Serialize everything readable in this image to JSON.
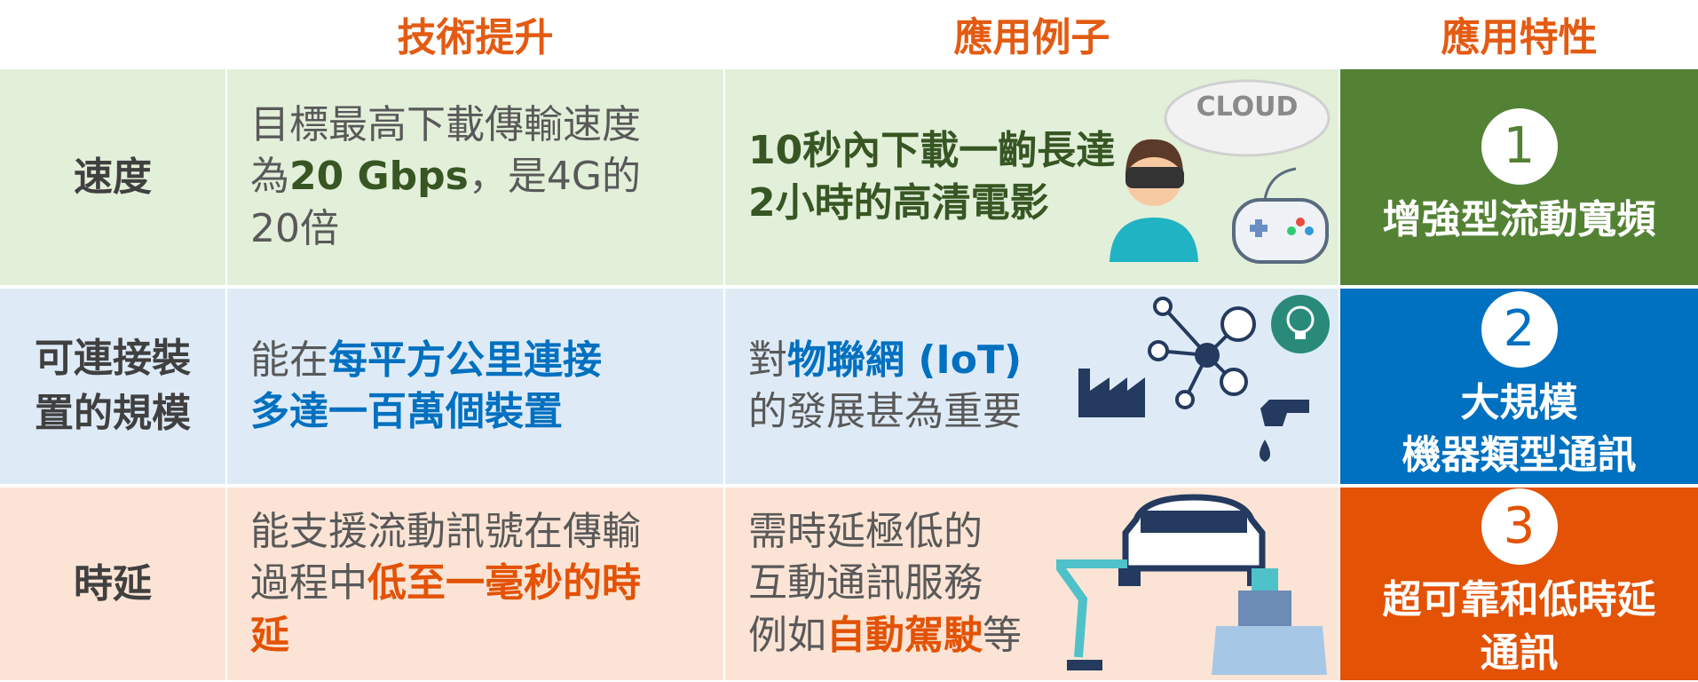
{
  "header": {
    "columns": [
      "技術提升",
      "應用例子",
      "應用特性"
    ]
  },
  "rows": [
    {
      "label": [
        "速度"
      ],
      "technology": [
        [
          {
            "text": "目標最高下載傳輸速度"
          }
        ],
        [
          {
            "text": "為"
          },
          {
            "text": "20 Gbps",
            "emphasis": true
          },
          {
            "text": "，是4G的"
          }
        ],
        [
          {
            "text": "20倍"
          }
        ]
      ],
      "example": [
        [
          {
            "text": "10秒內下載一齣長達",
            "emphasis": true
          }
        ],
        [
          {
            "text": "2小時的高清電影",
            "emphasis": true
          }
        ]
      ],
      "icon_text": "CLOUD",
      "feature": {
        "number": 1,
        "lines": [
          "增強型流動寬頻"
        ]
      }
    },
    {
      "label": [
        "可連接裝",
        "置的規模"
      ],
      "technology": [
        [
          {
            "text": "能在"
          },
          {
            "text": "每平方公里連接",
            "emphasis": true
          }
        ],
        [
          {
            "text": "多達一百萬個裝置",
            "emphasis": true
          }
        ]
      ],
      "example": [
        [
          {
            "text": "對"
          },
          {
            "text": "物聯網 (IoT)",
            "emphasis": true
          }
        ],
        [
          {
            "text": "的發展甚為重要"
          }
        ]
      ],
      "feature": {
        "number": 2,
        "lines": [
          "大規模",
          "機器類型通訊"
        ]
      }
    },
    {
      "label": [
        "時延"
      ],
      "technology": [
        [
          {
            "text": "能支援流動訊號在傳輸"
          }
        ],
        [
          {
            "text": "過程中"
          },
          {
            "text": "低至一毫秒的時",
            "emphasis": true
          }
        ],
        [
          {
            "text": "延",
            "emphasis": true
          }
        ]
      ],
      "example": [
        [
          {
            "text": "需時延極低的"
          }
        ],
        [
          {
            "text": "互動通訊服務"
          }
        ],
        [
          {
            "text": "例如"
          },
          {
            "text": "自動駕駛",
            "emphasis": true
          },
          {
            "text": "等"
          }
        ]
      ],
      "feature": {
        "number": 3,
        "lines": [
          "超可靠和低時延",
          "通訊"
        ]
      }
    }
  ]
}
